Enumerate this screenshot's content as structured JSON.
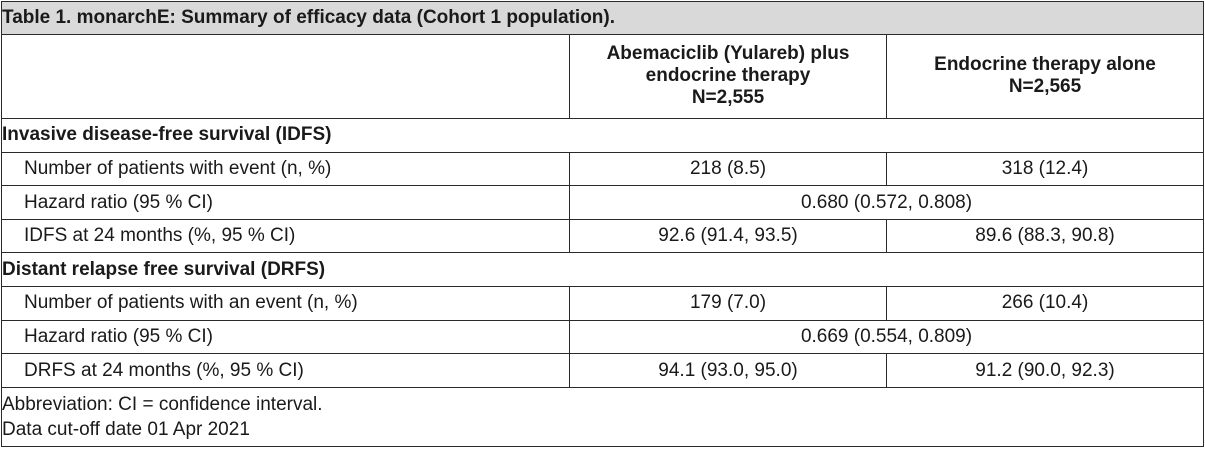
{
  "table": {
    "title": "Table 1. monarchE: Summary of efficacy data (Cohort 1 population).",
    "columns": [
      {
        "line1": "Abemaciclib (Yulareb) plus",
        "line2": "endocrine therapy",
        "line3": "N=2,555"
      },
      {
        "line1": "Endocrine therapy alone",
        "line2": "N=2,565"
      }
    ],
    "sections": [
      {
        "heading": "Invasive disease-free survival (IDFS)",
        "rows": [
          {
            "label": "Number of patients with event (n, %)",
            "a": "218 (8.5)",
            "b": "318 (12.4)"
          },
          {
            "label": "Hazard ratio (95 % CI)",
            "merged": "0.680 (0.572, 0.808)"
          },
          {
            "label": "IDFS at 24 months (%, 95 % CI)",
            "a": "92.6 (91.4, 93.5)",
            "b": "89.6 (88.3, 90.8)"
          }
        ]
      },
      {
        "heading": "Distant relapse free survival (DRFS)",
        "rows": [
          {
            "label": "Number of patients with an event (n, %)",
            "a": "179 (7.0)",
            "b": "266 (10.4)"
          },
          {
            "label": "Hazard ratio (95 % CI)",
            "merged": "0.669 (0.554, 0.809)"
          },
          {
            "label": "DRFS at 24 months (%, 95 % CI)",
            "a": "94.1 (93.0, 95.0)",
            "b": "91.2 (90.0, 92.3)"
          }
        ]
      }
    ],
    "footnotes": [
      "Abbreviation: CI = confidence interval.",
      "Data cut-off date 01 Apr 2021"
    ]
  }
}
